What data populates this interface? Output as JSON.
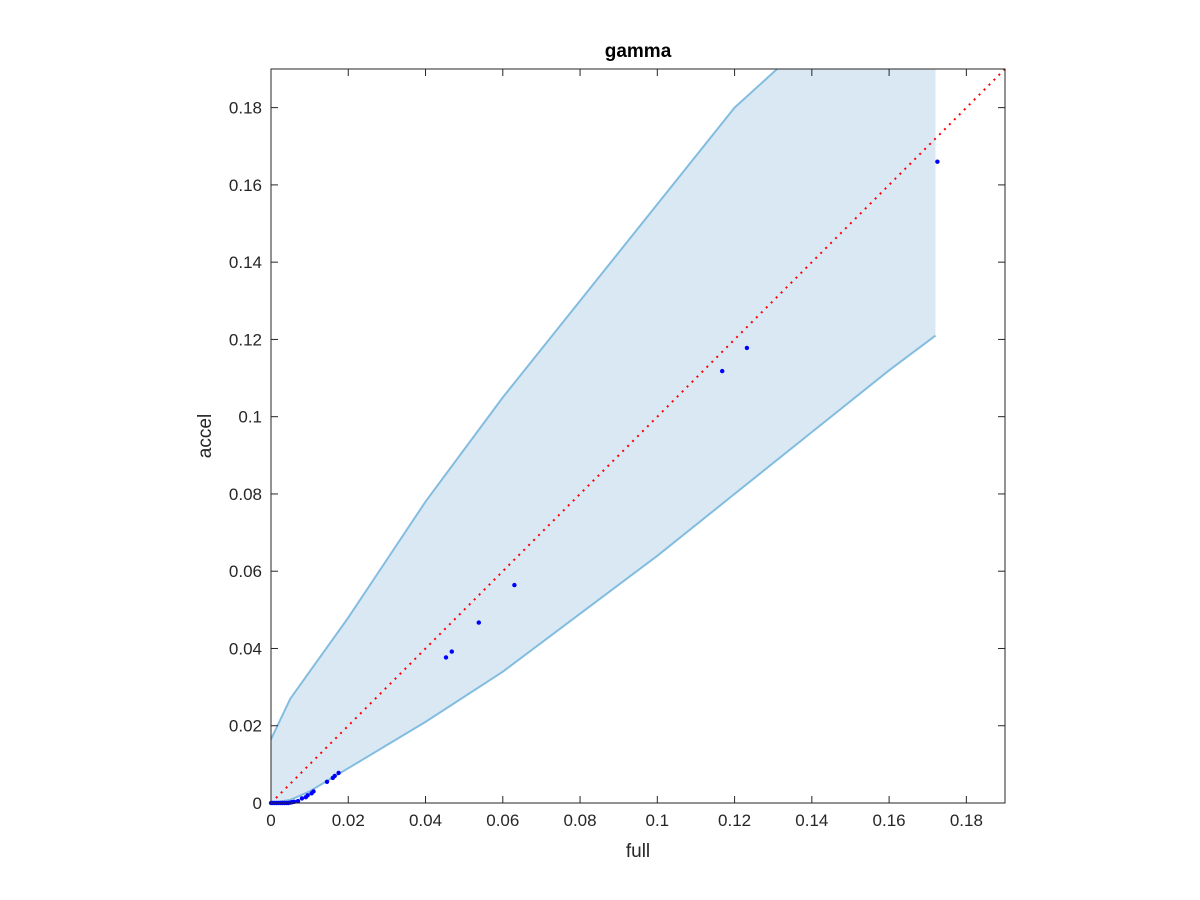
{
  "chart_data": {
    "type": "scatter",
    "title": "gamma",
    "xlabel": "full",
    "ylabel": "accel",
    "xlim": [
      0,
      0.19
    ],
    "ylim": [
      0,
      0.19
    ],
    "xticks": [
      0,
      0.02,
      0.04,
      0.06,
      0.08,
      0.1,
      0.12,
      0.14,
      0.16,
      0.18
    ],
    "yticks": [
      0,
      0.02,
      0.04,
      0.06,
      0.08,
      0.1,
      0.12,
      0.14,
      0.16,
      0.18
    ],
    "xtick_labels": [
      "0",
      "0.02",
      "0.04",
      "0.06",
      "0.08",
      "0.1",
      "0.12",
      "0.14",
      "0.16",
      "0.18"
    ],
    "ytick_labels": [
      "0",
      "0.02",
      "0.04",
      "0.06",
      "0.08",
      "0.1",
      "0.12",
      "0.14",
      "0.16",
      "0.18"
    ],
    "grid": false,
    "colors": {
      "band_fill": "#dae8f4",
      "band_edge": "#82bde0",
      "points": "#0000ff",
      "diagonal": "#ff0000",
      "axes": "#262626"
    },
    "band": {
      "upper": [
        [
          0,
          0.0165
        ],
        [
          0.005,
          0.027
        ],
        [
          0.01,
          0.034
        ],
        [
          0.02,
          0.048
        ],
        [
          0.04,
          0.078
        ],
        [
          0.06,
          0.105
        ],
        [
          0.08,
          0.13
        ],
        [
          0.1,
          0.155
        ],
        [
          0.12,
          0.18
        ],
        [
          0.131,
          0.19
        ],
        [
          0.172,
          0.19
        ]
      ],
      "lower": [
        [
          0,
          0
        ],
        [
          0.005,
          0.0008
        ],
        [
          0.01,
          0.003
        ],
        [
          0.02,
          0.009
        ],
        [
          0.04,
          0.021
        ],
        [
          0.06,
          0.034
        ],
        [
          0.08,
          0.049
        ],
        [
          0.1,
          0.064
        ],
        [
          0.12,
          0.08
        ],
        [
          0.14,
          0.096
        ],
        [
          0.16,
          0.112
        ],
        [
          0.172,
          0.121
        ]
      ]
    },
    "diagonal": [
      [
        0,
        0
      ],
      [
        0.19,
        0.19
      ]
    ],
    "points": [
      [
        0.0,
        0.0
      ],
      [
        0.0005,
        0.0
      ],
      [
        0.001,
        0.0
      ],
      [
        0.0015,
        0.0
      ],
      [
        0.002,
        0.0
      ],
      [
        0.0025,
        0.0
      ],
      [
        0.003,
        0.0
      ],
      [
        0.0035,
        0.0
      ],
      [
        0.004,
        0.0
      ],
      [
        0.0045,
        0.0
      ],
      [
        0.005,
        0.0001
      ],
      [
        0.0055,
        0.0002
      ],
      [
        0.006,
        0.0003
      ],
      [
        0.007,
        0.0005
      ],
      [
        0.008,
        0.0012
      ],
      [
        0.009,
        0.0015
      ],
      [
        0.0095,
        0.002
      ],
      [
        0.0105,
        0.0025
      ],
      [
        0.011,
        0.003
      ],
      [
        0.0145,
        0.0055
      ],
      [
        0.016,
        0.0065
      ],
      [
        0.0165,
        0.007
      ],
      [
        0.0175,
        0.0078
      ],
      [
        0.0453,
        0.0377
      ],
      [
        0.0468,
        0.0392
      ],
      [
        0.0538,
        0.0467
      ],
      [
        0.063,
        0.0564
      ],
      [
        0.1168,
        0.1118
      ],
      [
        0.1232,
        0.1178
      ],
      [
        0.1725,
        0.166
      ]
    ]
  }
}
